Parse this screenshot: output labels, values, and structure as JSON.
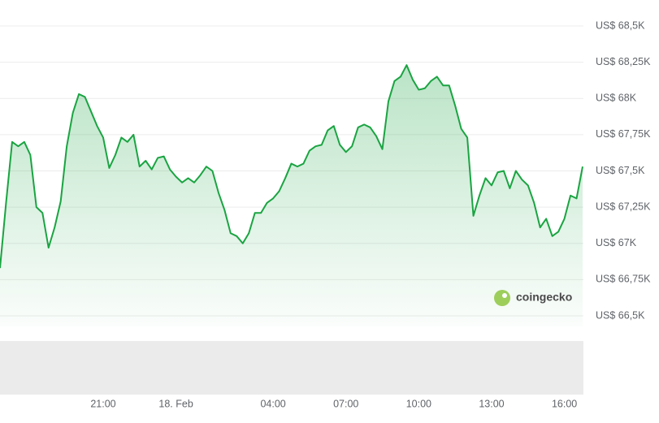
{
  "chart_data": {
    "type": "line",
    "categories": [
      null,
      null,
      null,
      null,
      null,
      null,
      null,
      null,
      null,
      null,
      null,
      null,
      null,
      null,
      null,
      null,
      null,
      "21:00",
      null,
      null,
      null,
      null,
      null,
      null,
      null,
      null,
      null,
      null,
      null,
      "18. Feb",
      null,
      null,
      null,
      null,
      null,
      null,
      null,
      null,
      null,
      null,
      null,
      null,
      null,
      null,
      null,
      "04:00",
      null,
      null,
      null,
      null,
      null,
      null,
      null,
      null,
      null,
      null,
      null,
      "07:00",
      null,
      null,
      null,
      null,
      null,
      null,
      null,
      null,
      null,
      null,
      null,
      "10:00",
      null,
      null,
      null,
      null,
      null,
      null,
      null,
      null,
      null,
      null,
      null,
      "13:00",
      null,
      null,
      null,
      null,
      null,
      null,
      null,
      null,
      null,
      null,
      null,
      "16:00",
      null,
      null,
      null
    ],
    "values": [
      66830,
      67280,
      67700,
      67670,
      67700,
      67610,
      67250,
      67210,
      66970,
      67110,
      67290,
      67670,
      67900,
      68030,
      68010,
      67910,
      67810,
      67730,
      67520,
      67610,
      67730,
      67700,
      67750,
      67530,
      67570,
      67510,
      67590,
      67600,
      67510,
      67460,
      67420,
      67450,
      67420,
      67470,
      67530,
      67500,
      67350,
      67230,
      67070,
      67050,
      67000,
      67070,
      67210,
      67210,
      67280,
      67310,
      67360,
      67450,
      67550,
      67530,
      67550,
      67640,
      67670,
      67680,
      67780,
      67810,
      67680,
      67630,
      67670,
      67800,
      67820,
      67800,
      67740,
      67650,
      67980,
      68120,
      68150,
      68230,
      68130,
      68060,
      68070,
      68120,
      68150,
      68090,
      68090,
      67950,
      67790,
      67730,
      67190,
      67330,
      67450,
      67400,
      67490,
      67500,
      67380,
      67500,
      67440,
      67400,
      67280,
      67110,
      67170,
      67050,
      67080,
      67170,
      67330,
      67310,
      67530
    ],
    "color": "#1aa442",
    "ylim": [
      66500,
      68500
    ],
    "yticks": [
      {
        "value": 66500,
        "label": "US$ 66,5K"
      },
      {
        "value": 66750,
        "label": "US$ 66,75K"
      },
      {
        "value": 67000,
        "label": "US$ 67K"
      },
      {
        "value": 67250,
        "label": "US$ 67,25K"
      },
      {
        "value": 67500,
        "label": "US$ 67,5K"
      },
      {
        "value": 67750,
        "label": "US$ 67,75K"
      },
      {
        "value": 68000,
        "label": "US$ 68K"
      },
      {
        "value": 68250,
        "label": "US$ 68,25K"
      },
      {
        "value": 68500,
        "label": "US$ 68,5K"
      }
    ],
    "grid": true,
    "watermark": "coingecko"
  }
}
